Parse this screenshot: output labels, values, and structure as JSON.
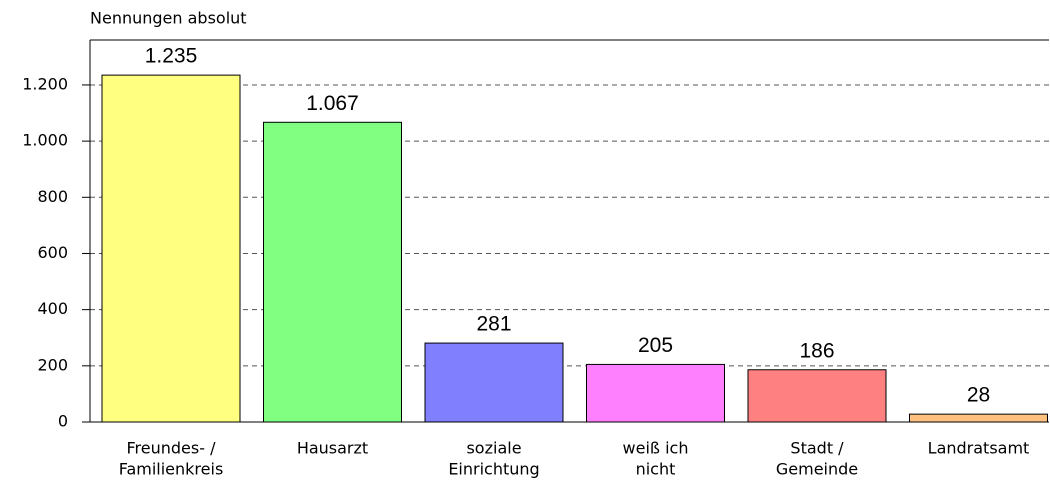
{
  "chart_data": {
    "type": "bar",
    "y_label": "Nennungen absolut",
    "categories": [
      [
        "Freundes- /",
        "Familienkreis"
      ],
      [
        "Hausarzt"
      ],
      [
        "soziale",
        "Einrichtung"
      ],
      [
        "weiß ich",
        "nicht"
      ],
      [
        "Stadt /",
        "Gemeinde"
      ],
      [
        "Landratsamt"
      ]
    ],
    "values": [
      1235,
      1067,
      281,
      205,
      186,
      28
    ],
    "value_labels": [
      "1.235",
      "1.067",
      "281",
      "205",
      "186",
      "28"
    ],
    "colors": [
      "#ffff80",
      "#80ff80",
      "#8080ff",
      "#ff80ff",
      "#ff8080",
      "#ffc080"
    ],
    "ylim": [
      0,
      1360
    ],
    "yticks": [
      0,
      200,
      400,
      600,
      800,
      {
        "value": 1000,
        "label": "1.000"
      },
      {
        "value": 1200,
        "label": "1.200"
      }
    ],
    "grid": true
  }
}
